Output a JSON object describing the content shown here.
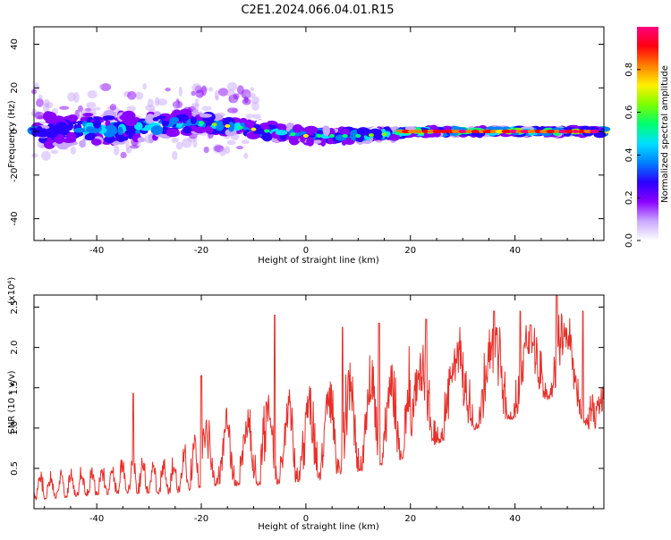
{
  "title": "C2E1.2024.066.04.01.R15",
  "chart_data": [
    {
      "type": "heatmap",
      "xlabel": "Height of straight line (km)",
      "ylabel": "Frequency (Hz)",
      "xlim": [
        -52,
        57
      ],
      "ylim": [
        -50,
        48
      ],
      "xticks": [
        -40,
        -20,
        0,
        20,
        40
      ],
      "yticks": [
        -40,
        -20,
        0,
        20,
        40
      ],
      "colorbar": {
        "label": "Normalized spectral amplitude",
        "range": [
          0,
          1
        ],
        "ticks": [
          "0.0",
          "0.2",
          "0.4",
          "0.6",
          "0.8"
        ],
        "colors": [
          "#ffffff",
          "#c9a8ff",
          "#8a00ff",
          "#2a00ff",
          "#0080ff",
          "#00e0ff",
          "#00ff70",
          "#7dff00",
          "#fff000",
          "#ff8000",
          "#ff0010",
          "#ff0080"
        ]
      },
      "ridge": [
        {
          "x": -50,
          "f": 0,
          "spread": 7
        },
        {
          "x": -40,
          "f": 1,
          "spread": 7
        },
        {
          "x": -30,
          "f": 2,
          "spread": 6
        },
        {
          "x": -20,
          "f": 4,
          "spread": 4
        },
        {
          "x": -10,
          "f": 1,
          "spread": 3
        },
        {
          "x": 0,
          "f": -2,
          "spread": 3
        },
        {
          "x": 10,
          "f": -2,
          "spread": 2.5
        },
        {
          "x": 17,
          "f": -1,
          "spread": 2
        },
        {
          "x": 20,
          "f": 0,
          "spread": 1.5
        },
        {
          "x": 56,
          "f": 0,
          "spread": 1.5
        }
      ]
    },
    {
      "type": "line",
      "xlabel": "Height of straight line (km)",
      "ylabel": "SNR (10 * v/v)",
      "ylabel_multiplier": "(x10⁴)",
      "xlim": [
        -52,
        57
      ],
      "ylim": [
        0,
        2.65
      ],
      "xticks": [
        -40,
        -20,
        0,
        20,
        40
      ],
      "yticks": [
        "0.5",
        "1.0",
        "1.5",
        "2.0",
        "2.5"
      ],
      "color": "#e8302a",
      "envelope": [
        {
          "x": -52,
          "lo": 0.05,
          "hi": 0.45
        },
        {
          "x": -40,
          "lo": 0.1,
          "hi": 0.55
        },
        {
          "x": -33,
          "lo": 0.1,
          "hi": 0.7
        },
        {
          "x": -25,
          "lo": 0.1,
          "hi": 0.65
        },
        {
          "x": -20,
          "lo": 0.1,
          "hi": 1.2
        },
        {
          "x": -10,
          "lo": 0.1,
          "hi": 1.35
        },
        {
          "x": 0,
          "lo": 0.1,
          "hi": 1.6
        },
        {
          "x": 10,
          "lo": 0.2,
          "hi": 1.9
        },
        {
          "x": 20,
          "lo": 0.4,
          "hi": 2.05
        },
        {
          "x": 30,
          "lo": 0.7,
          "hi": 2.3
        },
        {
          "x": 40,
          "lo": 0.9,
          "hi": 2.35
        },
        {
          "x": 48,
          "lo": 1.2,
          "hi": 2.6
        },
        {
          "x": 52,
          "lo": 1.0,
          "hi": 2.3
        },
        {
          "x": 56,
          "lo": 0.6,
          "hi": 1.6
        }
      ],
      "peaks": [
        {
          "x": -33,
          "y": 1.43
        },
        {
          "x": -20,
          "y": 1.65
        },
        {
          "x": -6,
          "y": 2.4
        },
        {
          "x": 7,
          "y": 2.25
        },
        {
          "x": 14,
          "y": 2.3
        },
        {
          "x": 23,
          "y": 2.35
        },
        {
          "x": 36,
          "y": 2.45
        },
        {
          "x": 41,
          "y": 2.45
        },
        {
          "x": 48,
          "y": 2.65
        },
        {
          "x": 53,
          "y": 2.45
        }
      ]
    }
  ]
}
